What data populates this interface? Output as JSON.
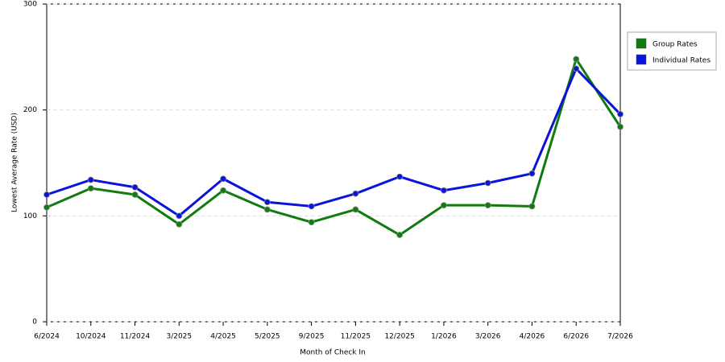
{
  "chart_data": {
    "type": "line",
    "x_label": "Month of Check In",
    "y_label": "Lowest Average Rate (USD)",
    "categories": [
      "6/2024",
      "10/2024",
      "11/2024",
      "3/2025",
      "4/2025",
      "5/2025",
      "9/2025",
      "11/2025",
      "12/2025",
      "1/2026",
      "3/2026",
      "4/2026",
      "6/2026",
      "7/2026"
    ],
    "series": [
      {
        "name": "Group Rates",
        "color": "#107c10",
        "values": [
          108,
          126,
          120,
          92,
          124,
          106,
          94,
          106,
          82,
          110,
          110,
          109,
          248,
          184
        ]
      },
      {
        "name": "Individual Rates",
        "color": "#0a14d8",
        "values": [
          120,
          134,
          127,
          100,
          135,
          113,
          109,
          121,
          137,
          124,
          131,
          140,
          239,
          196
        ]
      }
    ],
    "ylim": [
      0,
      300
    ],
    "yticks": [
      0,
      100,
      200,
      300
    ],
    "grid": true,
    "legend": "right"
  }
}
